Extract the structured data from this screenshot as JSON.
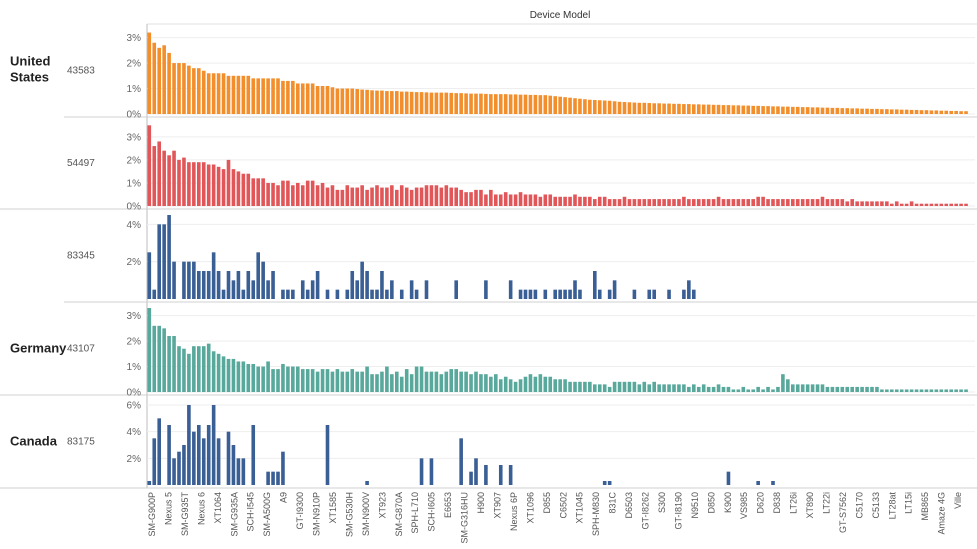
{
  "chart_data": {
    "type": "bar",
    "title": "Device Model",
    "x_tick_labels": [
      "SM-G900P",
      "Nexus 5",
      "SM-G935T",
      "Nexus 6",
      "XT1064",
      "SM-G935A",
      "SCH-I545",
      "SM-A500G",
      "A9",
      "GT-I9300",
      "SM-N910P",
      "XT1585",
      "SM-G530H",
      "SM-N900V",
      "XT923",
      "SM-G870A",
      "SPH-L710",
      "SCH-I605",
      "E6653",
      "SM-G316HU",
      "H900",
      "XT907",
      "Nexus 6P",
      "XT1096",
      "D855",
      "C6502",
      "XT1045",
      "SPH-M830",
      "831C",
      "D6503",
      "GT-I8262",
      "S300",
      "GT-I8190",
      "N9510",
      "D850",
      "K900",
      "VS985",
      "D620",
      "D838",
      "LT26i",
      "XT890",
      "LT22i",
      "GT-S7562",
      "C5170",
      "C5133",
      "LT28at",
      "LT15i",
      "MB865",
      "Amaze 4G",
      "Ville"
    ],
    "rows": [
      {
        "label": "United States",
        "value_label": "43583",
        "ylim": [
          0,
          3.3
        ],
        "ticks": [
          "0%",
          "1%",
          "2%",
          "3%"
        ],
        "tick_values": [
          0,
          1,
          2,
          3
        ],
        "color": "#f28e2b",
        "values": [
          3.2,
          2.8,
          2.6,
          2.7,
          2.4,
          2.0,
          2.0,
          2.0,
          1.9,
          1.8,
          1.8,
          1.7,
          1.6,
          1.6,
          1.6,
          1.6,
          1.5,
          1.5,
          1.5,
          1.5,
          1.5,
          1.4,
          1.4,
          1.4,
          1.4,
          1.4,
          1.4,
          1.3,
          1.3,
          1.3,
          1.2,
          1.2,
          1.2,
          1.2,
          1.1,
          1.1,
          1.1,
          1.05,
          1.0,
          1.0,
          1.0,
          1.0,
          0.98,
          0.96,
          0.95,
          0.93,
          0.92,
          0.92,
          0.9,
          0.9,
          0.9,
          0.88,
          0.88,
          0.87,
          0.86,
          0.86,
          0.85,
          0.84,
          0.84,
          0.84,
          0.84,
          0.83,
          0.82,
          0.82,
          0.81,
          0.8,
          0.8,
          0.8,
          0.79,
          0.78,
          0.78,
          0.78,
          0.78,
          0.77,
          0.77,
          0.76,
          0.76,
          0.75,
          0.75,
          0.74,
          0.74,
          0.72,
          0.7,
          0.68,
          0.66,
          0.64,
          0.62,
          0.6,
          0.58,
          0.56,
          0.55,
          0.54,
          0.53,
          0.52,
          0.5,
          0.48,
          0.47,
          0.46,
          0.45,
          0.44,
          0.44,
          0.43,
          0.42,
          0.42,
          0.41,
          0.41,
          0.4,
          0.4,
          0.39,
          0.39,
          0.38,
          0.38,
          0.37,
          0.37,
          0.36,
          0.36,
          0.35,
          0.35,
          0.34,
          0.34,
          0.33,
          0.33,
          0.32,
          0.32,
          0.31,
          0.31,
          0.3,
          0.3,
          0.29,
          0.29,
          0.28,
          0.28,
          0.27,
          0.27,
          0.26,
          0.26,
          0.25,
          0.25,
          0.24,
          0.24,
          0.23,
          0.23,
          0.22,
          0.22,
          0.21,
          0.21,
          0.2,
          0.2,
          0.19,
          0.19,
          0.18,
          0.18,
          0.17,
          0.17,
          0.16,
          0.16,
          0.15,
          0.15,
          0.14,
          0.14,
          0.13,
          0.13,
          0.12,
          0.12,
          0.11,
          0.11
        ]
      },
      {
        "label": "",
        "value_label": "54497",
        "ylim": [
          0,
          3.6
        ],
        "ticks": [
          "0%",
          "1%",
          "2%",
          "3%"
        ],
        "tick_values": [
          0,
          1,
          2,
          3
        ],
        "color": "#e15759",
        "values": [
          3.5,
          2.6,
          2.8,
          2.4,
          2.2,
          2.4,
          2.0,
          2.1,
          1.9,
          1.9,
          1.9,
          1.9,
          1.8,
          1.8,
          1.7,
          1.6,
          2.0,
          1.6,
          1.5,
          1.4,
          1.4,
          1.2,
          1.2,
          1.2,
          1.0,
          1.0,
          0.9,
          1.1,
          1.1,
          0.9,
          1.0,
          0.9,
          1.1,
          1.1,
          0.9,
          1.0,
          0.8,
          0.9,
          0.7,
          0.7,
          0.9,
          0.8,
          0.8,
          0.9,
          0.7,
          0.8,
          0.9,
          0.8,
          0.8,
          0.9,
          0.7,
          0.9,
          0.8,
          0.7,
          0.8,
          0.8,
          0.9,
          0.9,
          0.9,
          0.8,
          0.9,
          0.8,
          0.8,
          0.7,
          0.6,
          0.6,
          0.7,
          0.7,
          0.5,
          0.7,
          0.5,
          0.5,
          0.6,
          0.5,
          0.5,
          0.6,
          0.5,
          0.5,
          0.5,
          0.4,
          0.5,
          0.5,
          0.4,
          0.4,
          0.4,
          0.4,
          0.5,
          0.4,
          0.4,
          0.4,
          0.3,
          0.4,
          0.4,
          0.3,
          0.3,
          0.3,
          0.4,
          0.3,
          0.3,
          0.3,
          0.3,
          0.3,
          0.3,
          0.3,
          0.3,
          0.3,
          0.3,
          0.3,
          0.4,
          0.3,
          0.3,
          0.3,
          0.3,
          0.3,
          0.3,
          0.4,
          0.3,
          0.3,
          0.3,
          0.3,
          0.3,
          0.3,
          0.3,
          0.4,
          0.4,
          0.3,
          0.3,
          0.3,
          0.3,
          0.3,
          0.3,
          0.3,
          0.3,
          0.3,
          0.3,
          0.3,
          0.4,
          0.3,
          0.3,
          0.3,
          0.3,
          0.2,
          0.3,
          0.2,
          0.2,
          0.2,
          0.2,
          0.2,
          0.2,
          0.2,
          0.1,
          0.2,
          0.1,
          0.1,
          0.2,
          0.1,
          0.1,
          0.1,
          0.1,
          0.1,
          0.1,
          0.1,
          0.1,
          0.1,
          0.1,
          0.1
        ]
      },
      {
        "label": "",
        "value_label": "83345",
        "ylim": [
          0,
          4.5
        ],
        "ticks": [
          "2%",
          "4%"
        ],
        "tick_values": [
          2,
          4
        ],
        "color": "#3a5f95",
        "values": [
          2.5,
          0.5,
          4.0,
          4.0,
          4.5,
          2.0,
          0,
          2.0,
          2.0,
          2.0,
          1.5,
          1.5,
          1.5,
          2.5,
          1.5,
          0.5,
          1.5,
          1.0,
          1.5,
          0.5,
          1.5,
          1.0,
          2.5,
          2.0,
          1.0,
          1.5,
          0,
          0.5,
          0.5,
          0.5,
          0,
          1.0,
          0.5,
          1.0,
          1.5,
          0,
          0.5,
          0,
          0.5,
          0,
          0.5,
          1.5,
          1.0,
          2.0,
          1.5,
          0.5,
          0.5,
          1.5,
          0.5,
          1.0,
          0,
          0.5,
          0,
          1.0,
          0.5,
          0,
          1.0,
          0,
          0,
          0,
          0,
          0,
          1.0,
          0,
          0,
          0,
          0,
          0,
          1.0,
          0,
          0,
          0,
          0,
          1.0,
          0,
          0.5,
          0.5,
          0.5,
          0.5,
          0,
          0.5,
          0,
          0.5,
          0.5,
          0.5,
          0.5,
          1.0,
          0.5,
          0,
          0,
          1.5,
          0.5,
          0,
          0.5,
          1.0,
          0,
          0,
          0,
          0.5,
          0,
          0,
          0.5,
          0.5,
          0,
          0,
          0.5,
          0,
          0,
          0.5,
          1.0,
          0.5,
          0,
          0,
          0,
          0,
          0,
          0,
          0,
          0,
          0,
          0,
          0,
          0,
          0,
          0,
          0,
          0,
          0,
          0,
          0,
          0,
          0,
          0,
          0,
          0,
          0,
          0,
          0,
          0,
          0,
          0,
          0,
          0,
          0,
          0,
          0,
          0,
          0,
          0,
          0,
          0,
          0,
          0,
          0,
          0,
          0,
          0,
          0,
          0,
          0,
          0,
          0,
          0,
          0,
          0,
          0,
          0,
          0,
          0,
          0,
          0,
          0,
          0,
          0
        ]
      },
      {
        "label": "Germany",
        "value_label": "43107",
        "ylim": [
          0,
          3.3
        ],
        "ticks": [
          "0%",
          "1%",
          "2%",
          "3%"
        ],
        "tick_values": [
          0,
          1,
          2,
          3
        ],
        "color": "#59a89c",
        "values": [
          3.3,
          2.6,
          2.6,
          2.5,
          2.2,
          2.2,
          1.8,
          1.7,
          1.5,
          1.8,
          1.8,
          1.8,
          1.9,
          1.6,
          1.5,
          1.4,
          1.3,
          1.3,
          1.2,
          1.2,
          1.1,
          1.1,
          1.0,
          1.0,
          1.2,
          0.9,
          0.9,
          1.1,
          1.0,
          1.0,
          1.0,
          0.9,
          0.9,
          0.9,
          0.8,
          0.9,
          0.9,
          0.8,
          0.9,
          0.8,
          0.8,
          0.9,
          0.8,
          0.8,
          1.0,
          0.7,
          0.7,
          0.8,
          1.0,
          0.7,
          0.8,
          0.6,
          0.9,
          0.7,
          1.0,
          1.0,
          0.8,
          0.8,
          0.8,
          0.7,
          0.8,
          0.9,
          0.9,
          0.8,
          0.8,
          0.7,
          0.8,
          0.7,
          0.7,
          0.6,
          0.7,
          0.5,
          0.6,
          0.5,
          0.4,
          0.5,
          0.6,
          0.7,
          0.6,
          0.7,
          0.6,
          0.6,
          0.5,
          0.5,
          0.5,
          0.4,
          0.4,
          0.4,
          0.4,
          0.4,
          0.3,
          0.3,
          0.3,
          0.2,
          0.4,
          0.4,
          0.4,
          0.4,
          0.4,
          0.3,
          0.4,
          0.3,
          0.4,
          0.3,
          0.3,
          0.3,
          0.3,
          0.3,
          0.3,
          0.2,
          0.3,
          0.2,
          0.3,
          0.2,
          0.2,
          0.3,
          0.2,
          0.2,
          0.1,
          0.1,
          0.2,
          0.1,
          0.1,
          0.2,
          0.1,
          0.2,
          0.1,
          0.2,
          0.7,
          0.5,
          0.3,
          0.3,
          0.3,
          0.3,
          0.3,
          0.3,
          0.3,
          0.2,
          0.2,
          0.2,
          0.2,
          0.2,
          0.2,
          0.2,
          0.2,
          0.2,
          0.2,
          0.2,
          0.1,
          0.1,
          0.1,
          0.1,
          0.1,
          0.1,
          0.1,
          0.1,
          0.1,
          0.1,
          0.1,
          0.1,
          0.1,
          0.1,
          0.1,
          0.1,
          0.1,
          0.1
        ]
      },
      {
        "label": "Canada",
        "value_label": "83175",
        "ylim": [
          0,
          6.3
        ],
        "ticks": [
          "2%",
          "4%",
          "6%"
        ],
        "tick_values": [
          2,
          4,
          6
        ],
        "color": "#3a5f95",
        "values": [
          0.3,
          3.5,
          5.0,
          0,
          4.5,
          2.0,
          2.5,
          3.0,
          6.0,
          4.0,
          4.5,
          3.5,
          4.5,
          6.0,
          3.5,
          0,
          4.0,
          3.0,
          2.0,
          2.0,
          0,
          4.5,
          0,
          0,
          1.0,
          1.0,
          1.0,
          2.5,
          0,
          0,
          0,
          0,
          0,
          0,
          0,
          0,
          4.5,
          0,
          0,
          0,
          0,
          0,
          0,
          0,
          0.3,
          0,
          0,
          0,
          0,
          0,
          0,
          0,
          0,
          0,
          0,
          2.0,
          0,
          2.0,
          0,
          0,
          0,
          0,
          0,
          3.5,
          0,
          1.0,
          2.0,
          0,
          1.5,
          0,
          0,
          1.5,
          0,
          1.5,
          0,
          0,
          0,
          0,
          0,
          0,
          0,
          0,
          0,
          0,
          0,
          0,
          0,
          0,
          0,
          0,
          0,
          0,
          0.3,
          0.3,
          0,
          0,
          0,
          0,
          0,
          0,
          0,
          0,
          0,
          0,
          0,
          0,
          0,
          0,
          0,
          0,
          0,
          0,
          0,
          0,
          0,
          0,
          0,
          1.0,
          0,
          0,
          0,
          0,
          0,
          0.3,
          0,
          0,
          0.3,
          0,
          0,
          0,
          0,
          0,
          0,
          0,
          0,
          0,
          0,
          0,
          0,
          0,
          0,
          0,
          0,
          0,
          0,
          0,
          0,
          0,
          0,
          0,
          0,
          0,
          0,
          0,
          0,
          0,
          0,
          0,
          0,
          0,
          0,
          0,
          0,
          0
        ]
      }
    ]
  }
}
